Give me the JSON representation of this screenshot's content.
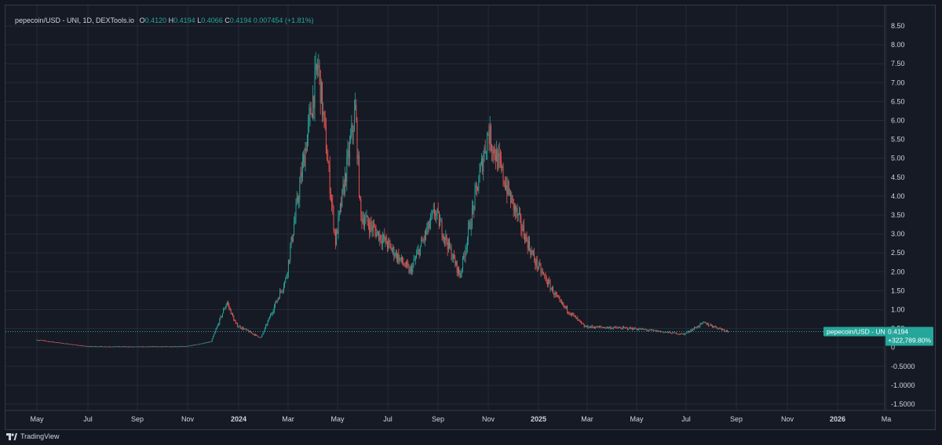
{
  "header": {
    "symbol_line": "pepecoin/USD - UNI, 1D, DEXTools.io",
    "open_label": "O",
    "open": "0.4120",
    "high_label": "H",
    "high": "0.4194",
    "low_label": "L",
    "low": "0.4066",
    "close_label": "C",
    "close": "0.4194",
    "change": "0.007454 (+1.81%)"
  },
  "price_tag": {
    "name": "pepecoin/USD - UNI",
    "price": "0.4194",
    "change_pct": "+322,789.80%"
  },
  "footer": {
    "brand": "TradingView"
  },
  "colors": {
    "up": "#26a69a",
    "down": "#ef5350",
    "background": "#161a25",
    "grid": "#262a36",
    "tag": "#26a69a"
  },
  "chart_data": {
    "type": "candlestick",
    "interval": "1D",
    "x_ticks": [
      "May",
      "Jul",
      "Sep",
      "Nov",
      "2024",
      "Mar",
      "May",
      "Jul",
      "Sep",
      "Nov",
      "2025",
      "Mar",
      "May",
      "Jul",
      "Sep",
      "Nov",
      "2026",
      "Ma"
    ],
    "y_ticks": [
      "8.50",
      "8.00",
      "7.50",
      "7.00",
      "6.50",
      "6.00",
      "5.50",
      "5.00",
      "4.50",
      "4.00",
      "3.50",
      "3.00",
      "2.50",
      "2.00",
      "1.50",
      "1.00",
      "0.50",
      "0",
      "-0.5000",
      "-1.0000",
      "-1.5000"
    ],
    "ylim": [
      -1.75,
      8.85
    ],
    "last_price": 0.4194,
    "approx_close_by_month": [
      {
        "date": "2023-05",
        "value": 0.2
      },
      {
        "date": "2023-07",
        "value": 0.03
      },
      {
        "date": "2023-09",
        "value": 0.02
      },
      {
        "date": "2023-11",
        "value": 0.03
      },
      {
        "date": "2023-12",
        "value": 0.15
      },
      {
        "date": "2023-12-20",
        "value": 1.2
      },
      {
        "date": "2024-01",
        "value": 0.6
      },
      {
        "date": "2024-02",
        "value": 0.25
      },
      {
        "date": "2024-03",
        "value": 1.8
      },
      {
        "date": "2024-04-10",
        "value": 7.5
      },
      {
        "date": "2024-05",
        "value": 2.8
      },
      {
        "date": "2024-05-25",
        "value": 6.3
      },
      {
        "date": "2024-06",
        "value": 3.5
      },
      {
        "date": "2024-07",
        "value": 2.8
      },
      {
        "date": "2024-08",
        "value": 2.0
      },
      {
        "date": "2024-09",
        "value": 3.6
      },
      {
        "date": "2024-10",
        "value": 1.9
      },
      {
        "date": "2024-11-05",
        "value": 5.7
      },
      {
        "date": "2024-12",
        "value": 4.0
      },
      {
        "date": "2025-01",
        "value": 2.3
      },
      {
        "date": "2025-02",
        "value": 1.2
      },
      {
        "date": "2025-03",
        "value": 0.55
      },
      {
        "date": "2025-05",
        "value": 0.5
      },
      {
        "date": "2025-07",
        "value": 0.35
      },
      {
        "date": "2025-07-25",
        "value": 0.65
      },
      {
        "date": "2025-08-25",
        "value": 0.4194
      }
    ]
  }
}
